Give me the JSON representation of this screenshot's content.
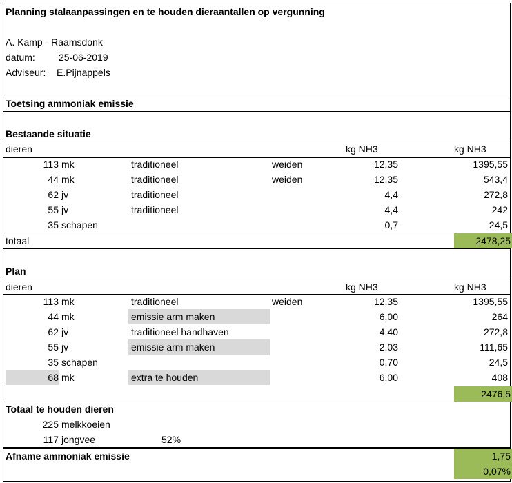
{
  "header": {
    "title": "Planning stalaanpassingen en te houden dieraantallen op vergunning",
    "client": "A. Kamp - Raamsdonk",
    "date_label": "datum:",
    "date_value": "25-06-2019",
    "advisor_label": "Adviseur:",
    "advisor_value": "E.Pijnappels"
  },
  "section_title": "Toetsing ammoniak emissie",
  "existing": {
    "title": "Bestaande situatie",
    "col_animals": "dieren",
    "col_factor": "kg NH3",
    "col_total": "kg NH3",
    "rows": [
      {
        "count": "113",
        "type": "mk",
        "system": "traditioneel",
        "grazing": "weiden",
        "factor": "12,35",
        "total": "1395,55"
      },
      {
        "count": "44",
        "type": "mk",
        "system": "traditioneel",
        "grazing": "weiden",
        "factor": "12,35",
        "total": "543,4"
      },
      {
        "count": "62",
        "type": "jv",
        "system": "traditioneel",
        "grazing": "",
        "factor": "4,4",
        "total": "272,8"
      },
      {
        "count": "55",
        "type": "jv",
        "system": "traditioneel",
        "grazing": "",
        "factor": "4,4",
        "total": "242"
      },
      {
        "count": "35",
        "type": "schapen",
        "system": "",
        "grazing": "",
        "factor": "0,7",
        "total": "24,5"
      }
    ],
    "total_label": "totaal",
    "total_value": "2478,25"
  },
  "plan": {
    "title": "Plan",
    "col_animals": "dieren",
    "col_factor": "kg NH3",
    "col_total": "kg NH3",
    "rows": [
      {
        "count": "113",
        "type": "mk",
        "system": "traditioneel",
        "grazing": "weiden",
        "factor": "12,35",
        "total": "1395,55"
      },
      {
        "count": "44",
        "type": "mk",
        "system": "emissie arm maken",
        "grazing": "",
        "factor": "6,00",
        "total": "264"
      },
      {
        "count": "62",
        "type": "jv",
        "system": "traditioneel handhaven",
        "grazing": "",
        "factor": "4,40",
        "total": "272,8"
      },
      {
        "count": "55",
        "type": "jv",
        "system": "emissie arm maken",
        "grazing": "",
        "factor": "2,03",
        "total": "111,65"
      },
      {
        "count": "35",
        "type": "schapen",
        "system": "",
        "grazing": "",
        "factor": "0,70",
        "total": "24,5"
      },
      {
        "count": "68",
        "type": "mk",
        "system": "extra te houden",
        "grazing": "",
        "factor": "6,00",
        "total": "408"
      }
    ],
    "total_value": "2476,5"
  },
  "totals": {
    "title": "Totaal te houden dieren",
    "dairy_count": "225",
    "dairy_label": "melkkoeien",
    "young_count": "117",
    "young_label": "jongvee",
    "young_pct": "52%"
  },
  "reduction": {
    "title": "Afname ammoniak emissie",
    "value": "1,75",
    "percent": "0,07%"
  },
  "colors": {
    "highlight_green": "#9bbb59",
    "highlight_grey": "#d9d9d9"
  }
}
